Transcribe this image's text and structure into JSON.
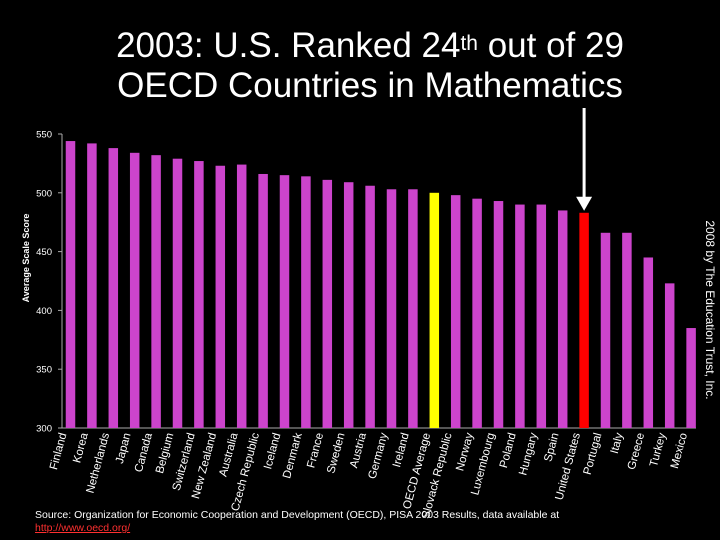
{
  "title": {
    "line1_prefix": "2003:  U.S. Ranked 24",
    "line1_sup": "th",
    "line1_suffix": " out of 29",
    "line2": "OECD Countries in Mathematics"
  },
  "chart_data": {
    "type": "bar",
    "ylabel": "Average Scale Score",
    "ylim": [
      300,
      550
    ],
    "yticks": [
      300,
      350,
      400,
      450,
      500,
      550
    ],
    "grid": false,
    "categories": [
      "Finland",
      "Korea",
      "Netherlands",
      "Japan",
      "Canada",
      "Belgium",
      "Switzerland",
      "New Zealand",
      "Australia",
      "Czech Republic",
      "Iceland",
      "Denmark",
      "France",
      "Sweden",
      "Austria",
      "Germany",
      "Ireland",
      "OECD Average",
      "Slovack Republic",
      "Norway",
      "Luxembourg",
      "Poland",
      "Hungary",
      "Spain",
      "United States",
      "Portugal",
      "Italy",
      "Greece",
      "Turkey",
      "Mexico"
    ],
    "values": [
      544,
      542,
      538,
      534,
      532,
      529,
      527,
      523,
      524,
      516,
      515,
      514,
      511,
      509,
      506,
      503,
      503,
      500,
      498,
      495,
      493,
      490,
      490,
      485,
      483,
      466,
      466,
      445,
      423,
      385
    ],
    "highlight": {
      "OECD Average": "#ffff00",
      "United States": "#ff0000"
    },
    "bar_color": "#cc44cc",
    "annotation": "arrow pointing to United States"
  },
  "colors": {
    "bars": "#cc44cc",
    "oecd_average": "#ffff00",
    "united_states": "#ff0000",
    "axis": "#aaaaaa"
  },
  "source": {
    "text": "Source: Organization for Economic Cooperation and Development (OECD), PISA 2003 Results, data available at",
    "link": "http://www.oecd.org/"
  },
  "credit": "2008 by The Education Trust, Inc."
}
